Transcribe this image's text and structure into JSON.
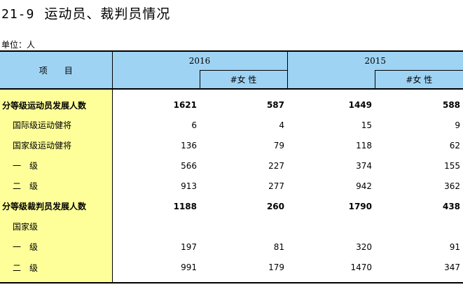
{
  "title": {
    "number": "21-9",
    "text": "运动员、裁判员情况"
  },
  "unit": "单位：人",
  "header": {
    "item": "项　　目",
    "year_a": "2016",
    "year_b": "2015",
    "female_a": "#女  性",
    "female_b": "#女  性"
  },
  "rows": [
    {
      "label": "分等级运动员发展人数",
      "bold": true,
      "values": [
        "1621",
        "587",
        "1449",
        "588"
      ]
    },
    {
      "label": "国际级运动健将",
      "bold": false,
      "values": [
        "6",
        "4",
        "15",
        "9"
      ]
    },
    {
      "label": "国家级运动健将",
      "bold": false,
      "values": [
        "136",
        "79",
        "118",
        "62"
      ]
    },
    {
      "label": "一　级",
      "bold": false,
      "values": [
        "566",
        "227",
        "374",
        "155"
      ]
    },
    {
      "label": "二　级",
      "bold": false,
      "values": [
        "913",
        "277",
        "942",
        "362"
      ]
    },
    {
      "label": "分等级裁判员发展人数",
      "bold": true,
      "values": [
        "1188",
        "260",
        "1790",
        "438"
      ]
    },
    {
      "label": "国家级",
      "bold": false,
      "values": [
        "",
        "",
        "",
        ""
      ]
    },
    {
      "label": "一　级",
      "bold": false,
      "values": [
        "197",
        "81",
        "320",
        "91"
      ]
    },
    {
      "label": "二　级",
      "bold": false,
      "values": [
        "991",
        "179",
        "1470",
        "347"
      ]
    }
  ]
}
